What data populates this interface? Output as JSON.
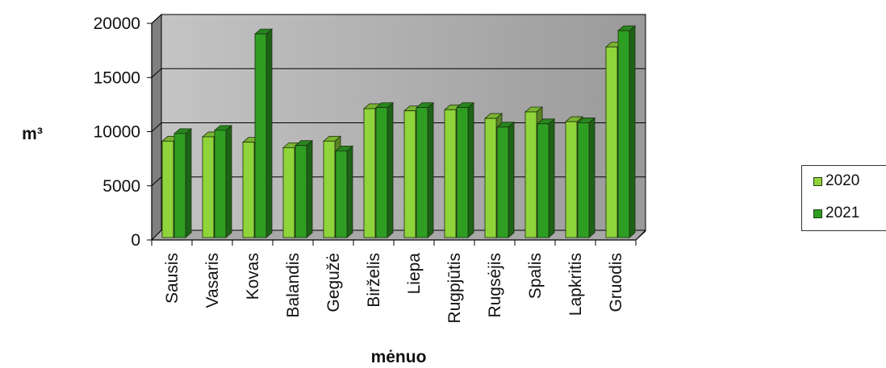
{
  "chart_data": {
    "type": "bar",
    "title": "",
    "xlabel": "mėnuo",
    "ylabel": "m³",
    "ylim": [
      0,
      20000
    ],
    "yticks": [
      0,
      5000,
      10000,
      15000,
      20000
    ],
    "grid": true,
    "legend_position": "right",
    "categories": [
      "Sausis",
      "Vasaris",
      "Kovas",
      "Balandis",
      "Gegužė",
      "Birželis",
      "Liepa",
      "Rugpjūtis",
      "Rugsėjis",
      "Spalis",
      "Lapkritis",
      "Gruodis"
    ],
    "series": [
      {
        "name": "2020",
        "color": "#8fd43a",
        "values": [
          8900,
          9300,
          8800,
          8300,
          8900,
          11900,
          11700,
          11800,
          11000,
          11600,
          10700,
          17600
        ]
      },
      {
        "name": "2021",
        "color": "#2e9e23",
        "values": [
          9600,
          9900,
          18800,
          8500,
          8000,
          12000,
          12000,
          12000,
          10200,
          10500,
          10600,
          19100
        ]
      }
    ]
  }
}
